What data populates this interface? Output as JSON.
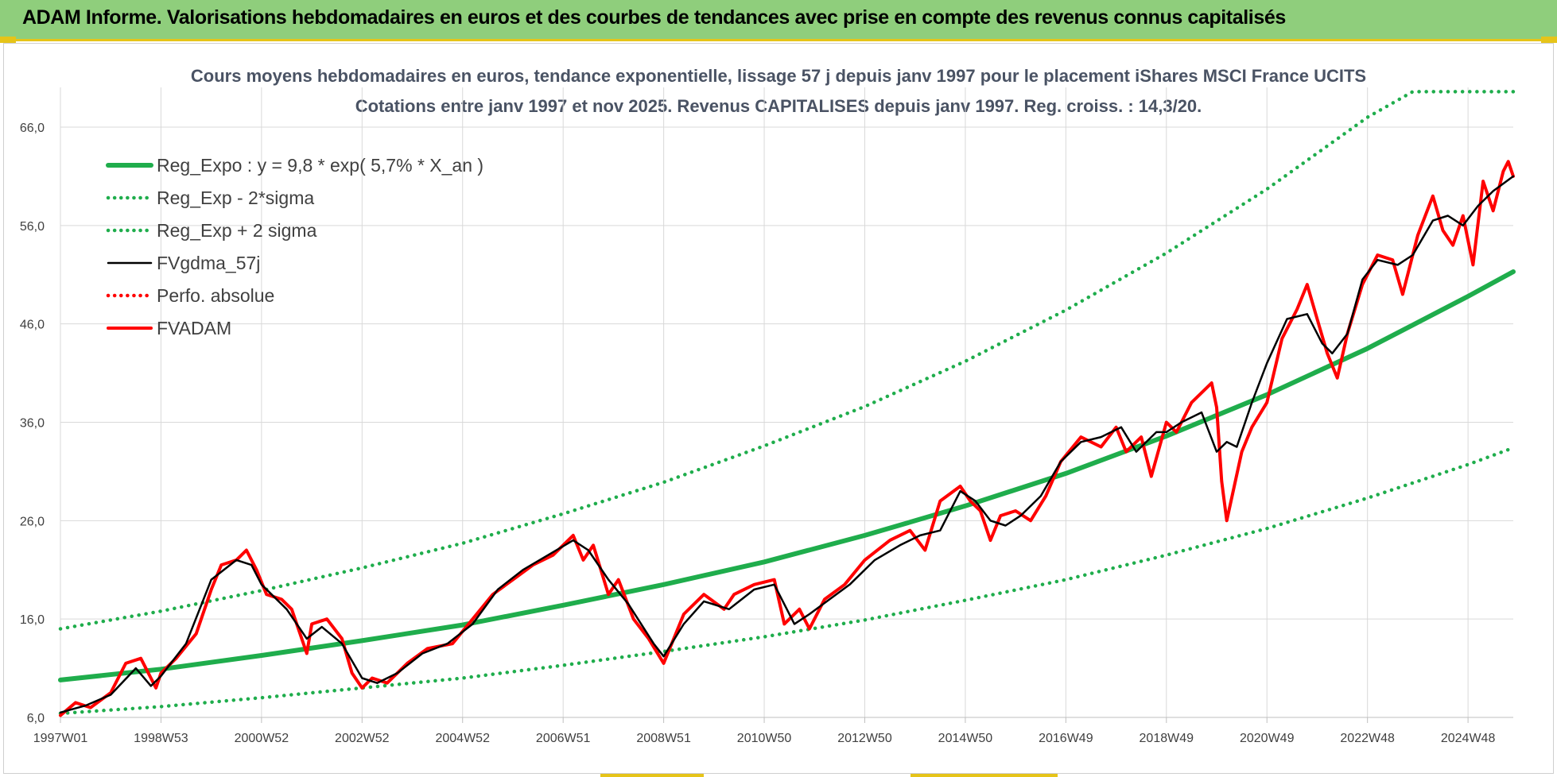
{
  "header": {
    "title": "ADAM Informe. Valorisations hebdomadaires en euros et des courbes de tendances avec prise en compte des revenus connus capitalisés"
  },
  "colors": {
    "banner": "#8fce7c",
    "accent": "#e6c419",
    "trend": "#1fad4c",
    "smooth": "#000000",
    "price": "#ff0000"
  },
  "chart_data": {
    "type": "line",
    "title": "Cours moyens hebdomadaires en euros, tendance exponentielle, lissage 57 j depuis janv 1997 pour le placement iShares MSCI France UCITS",
    "subtitle": "Cotations entre janv 1997 et nov 2025. Revenus CAPITALISES depuis janv 1997. Reg. croiss. : 14,3/20.",
    "xlabel": "",
    "ylabel": "",
    "xlim": [
      1997.0,
      2025.9
    ],
    "ylim": [
      6,
      66
    ],
    "x_ticks": [
      {
        "x": 1997.0,
        "label": "1997W01"
      },
      {
        "x": 1999.0,
        "label": "1998W53"
      },
      {
        "x": 2001.0,
        "label": "2000W52"
      },
      {
        "x": 2003.0,
        "label": "2002W52"
      },
      {
        "x": 2005.0,
        "label": "2004W52"
      },
      {
        "x": 2007.0,
        "label": "2006W51"
      },
      {
        "x": 2009.0,
        "label": "2008W51"
      },
      {
        "x": 2011.0,
        "label": "2010W50"
      },
      {
        "x": 2013.0,
        "label": "2012W50"
      },
      {
        "x": 2015.0,
        "label": "2014W50"
      },
      {
        "x": 2017.0,
        "label": "2016W49"
      },
      {
        "x": 2019.0,
        "label": "2018W49"
      },
      {
        "x": 2021.0,
        "label": "2020W49"
      },
      {
        "x": 2023.0,
        "label": "2022W48"
      },
      {
        "x": 2025.0,
        "label": "2024W48"
      }
    ],
    "y_ticks": [
      {
        "y": 6,
        "label": "6,0"
      },
      {
        "y": 16,
        "label": "16,0"
      },
      {
        "y": 26,
        "label": "26,0"
      },
      {
        "y": 36,
        "label": "36,0"
      },
      {
        "y": 46,
        "label": "46,0"
      },
      {
        "y": 56,
        "label": "56,0"
      },
      {
        "y": 66,
        "label": "66,0"
      }
    ],
    "grid": true,
    "legend_position": "top-left",
    "series": [
      {
        "name": "Reg_Expo : y = 9,8 * exp( 5,7% *  X_an )",
        "style": "solid-thick",
        "color": "#1fad4c",
        "x": [
          1997,
          1999,
          2001,
          2003,
          2005,
          2007,
          2009,
          2011,
          2013,
          2015,
          2017,
          2019,
          2021,
          2023,
          2025,
          2025.9
        ],
        "y": [
          9.8,
          10.9,
          12.3,
          13.8,
          15.4,
          17.4,
          19.5,
          21.8,
          24.5,
          27.5,
          30.8,
          34.6,
          38.8,
          43.5,
          48.8,
          51.3
        ]
      },
      {
        "name": "Reg_Exp - 2*sigma",
        "style": "dotted",
        "color": "#1fad4c",
        "x": [
          1997,
          1999,
          2001,
          2003,
          2005,
          2007,
          2009,
          2011,
          2013,
          2015,
          2017,
          2019,
          2021,
          2023,
          2025,
          2025.9
        ],
        "y": [
          6.4,
          7.1,
          8.0,
          9.0,
          10.0,
          11.3,
          12.7,
          14.2,
          15.9,
          17.9,
          20.0,
          22.5,
          25.2,
          28.3,
          31.7,
          33.4
        ]
      },
      {
        "name": "Reg_Exp + 2 sigma",
        "style": "dotted",
        "color": "#1fad4c",
        "x": [
          1997,
          1999,
          2001,
          2003,
          2005,
          2007,
          2009,
          2011,
          2013,
          2015,
          2017,
          2019,
          2021,
          2023,
          2023.9,
          2025.9
        ],
        "y": [
          15.0,
          16.8,
          18.9,
          21.2,
          23.7,
          26.7,
          29.9,
          33.6,
          37.6,
          42.2,
          47.4,
          53.2,
          59.7,
          67.0,
          69.6,
          69.6
        ]
      },
      {
        "name": "FVgdma_57j",
        "style": "solid",
        "color": "#000000",
        "x": [
          1997.0,
          1997.5,
          1998.0,
          1998.5,
          1998.8,
          1999.0,
          1999.5,
          2000.0,
          2000.5,
          2000.8,
          2001.0,
          2001.5,
          2001.9,
          2002.2,
          2002.6,
          2003.0,
          2003.3,
          2003.7,
          2004.2,
          2004.7,
          2005.2,
          2005.7,
          2006.2,
          2006.7,
          2007.2,
          2007.5,
          2007.9,
          2008.3,
          2008.8,
          2009.0,
          2009.4,
          2009.8,
          2010.3,
          2010.8,
          2011.2,
          2011.6,
          2011.9,
          2012.3,
          2012.7,
          2013.2,
          2013.7,
          2014.1,
          2014.5,
          2014.9,
          2015.2,
          2015.5,
          2015.8,
          2016.1,
          2016.5,
          2016.9,
          2017.3,
          2017.7,
          2018.1,
          2018.4,
          2018.8,
          2019.0,
          2019.3,
          2019.7,
          2020.0,
          2020.2,
          2020.4,
          2020.7,
          2021.0,
          2021.4,
          2021.8,
          2022.1,
          2022.3,
          2022.6,
          2022.9,
          2023.2,
          2023.6,
          2023.9,
          2024.3,
          2024.6,
          2024.9,
          2025.2,
          2025.5,
          2025.9
        ],
        "y": [
          6.5,
          7.2,
          8.3,
          11.0,
          9.2,
          10.2,
          13.5,
          20.0,
          22.0,
          21.5,
          19.5,
          17.0,
          14.0,
          15.2,
          13.5,
          10.0,
          9.5,
          10.5,
          12.5,
          13.5,
          15.5,
          19.0,
          21.0,
          22.5,
          24.0,
          23.0,
          20.0,
          17.5,
          13.5,
          12.2,
          15.5,
          17.8,
          17.0,
          19.0,
          19.5,
          15.5,
          16.5,
          18.0,
          19.5,
          22.0,
          23.5,
          24.5,
          25.0,
          29.0,
          28.0,
          26.0,
          25.5,
          26.5,
          28.5,
          32.0,
          34.0,
          34.5,
          35.5,
          33.0,
          35.0,
          35.0,
          36.0,
          37.0,
          33.0,
          34.0,
          33.5,
          38.0,
          42.0,
          46.5,
          47.0,
          44.0,
          43.0,
          45.0,
          50.5,
          52.5,
          52.0,
          53.0,
          56.5,
          57.0,
          56.0,
          58.0,
          59.5,
          61.0
        ]
      },
      {
        "name": "Perfo. absolue",
        "style": "dotted",
        "color": "#ff0000",
        "x": [],
        "y": []
      },
      {
        "name": "FVADAM",
        "style": "solid-thick",
        "color": "#ff0000",
        "x": [
          1997.0,
          1997.3,
          1997.6,
          1998.0,
          1998.3,
          1998.6,
          1998.9,
          1999.0,
          1999.3,
          1999.7,
          2000.0,
          2000.2,
          2000.5,
          2000.7,
          2000.9,
          2001.1,
          2001.4,
          2001.6,
          2001.9,
          2002.0,
          2002.3,
          2002.6,
          2002.8,
          2003.0,
          2003.2,
          2003.5,
          2003.9,
          2004.3,
          2004.8,
          2005.2,
          2005.6,
          2006.0,
          2006.4,
          2006.8,
          2007.2,
          2007.4,
          2007.6,
          2007.9,
          2008.1,
          2008.4,
          2008.7,
          2009.0,
          2009.2,
          2009.4,
          2009.8,
          2010.2,
          2010.4,
          2010.8,
          2011.2,
          2011.4,
          2011.7,
          2011.9,
          2012.2,
          2012.6,
          2013.0,
          2013.5,
          2013.9,
          2014.2,
          2014.5,
          2014.9,
          2015.1,
          2015.3,
          2015.5,
          2015.7,
          2016.0,
          2016.3,
          2016.6,
          2016.9,
          2017.3,
          2017.7,
          2018.0,
          2018.2,
          2018.5,
          2018.7,
          2019.0,
          2019.2,
          2019.5,
          2019.9,
          2020.0,
          2020.1,
          2020.2,
          2020.5,
          2020.7,
          2021.0,
          2021.3,
          2021.6,
          2021.8,
          2022.0,
          2022.2,
          2022.4,
          2022.6,
          2022.9,
          2023.2,
          2023.5,
          2023.7,
          2024.0,
          2024.3,
          2024.5,
          2024.7,
          2024.9,
          2025.1,
          2025.3,
          2025.5,
          2025.7,
          2025.8,
          2025.9
        ],
        "y": [
          6.2,
          7.5,
          7.0,
          8.5,
          11.5,
          12.0,
          9.0,
          10.5,
          12.0,
          14.5,
          19.0,
          21.5,
          22.0,
          23.0,
          21.0,
          18.5,
          18.0,
          17.0,
          12.5,
          15.5,
          16.0,
          14.0,
          10.5,
          9.0,
          10.0,
          9.5,
          11.5,
          13.0,
          13.5,
          16.0,
          18.5,
          20.0,
          21.5,
          22.5,
          24.5,
          22.0,
          23.5,
          18.5,
          20.0,
          16.0,
          14.0,
          11.5,
          14.0,
          16.5,
          18.5,
          17.0,
          18.5,
          19.5,
          20.0,
          15.5,
          17.0,
          15.0,
          18.0,
          19.5,
          22.0,
          24.0,
          25.0,
          23.0,
          28.0,
          29.5,
          28.0,
          27.0,
          24.0,
          26.5,
          27.0,
          26.0,
          28.5,
          32.0,
          34.5,
          33.5,
          35.5,
          33.0,
          34.5,
          30.5,
          36.0,
          35.0,
          38.0,
          40.0,
          37.5,
          30.0,
          26.0,
          33.0,
          35.5,
          38.0,
          44.5,
          47.5,
          50.0,
          46.5,
          43.0,
          40.5,
          45.0,
          50.0,
          53.0,
          52.5,
          49.0,
          55.0,
          59.0,
          55.5,
          54.0,
          57.0,
          52.0,
          60.5,
          57.5,
          61.5,
          62.5,
          61.0
        ]
      }
    ]
  }
}
